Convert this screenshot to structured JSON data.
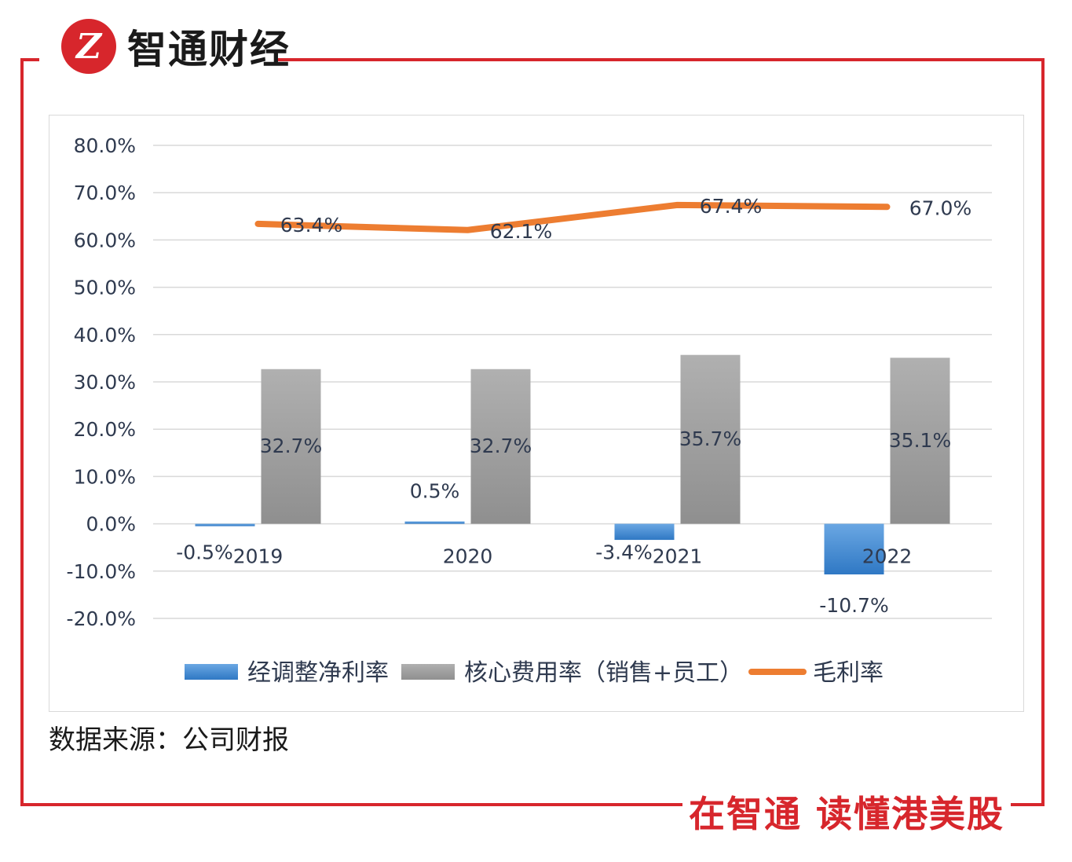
{
  "brand": {
    "name": "智通财经",
    "logo_letter": "Z",
    "slogan": "在智通  读懂港美股",
    "accent": "#d7262c"
  },
  "source_note": "数据来源：公司财报",
  "chart_data": {
    "type": "bar",
    "title": "",
    "categories": [
      "2019",
      "2020",
      "2021",
      "2022"
    ],
    "ylim": [
      -20,
      80
    ],
    "yticks": [
      -20,
      -10,
      0,
      10,
      20,
      30,
      40,
      50,
      60,
      70,
      80
    ],
    "ytick_labels": [
      "-20.0%",
      "-10.0%",
      "0.0%",
      "10.0%",
      "20.0%",
      "30.0%",
      "40.0%",
      "50.0%",
      "60.0%",
      "70.0%",
      "80.0%"
    ],
    "grid": true,
    "legend_position": "bottom",
    "series": [
      {
        "name": "经调整净利率",
        "kind": "bar",
        "values": [
          -0.5,
          0.5,
          -3.4,
          -10.7
        ],
        "labels": [
          "-0.5%",
          "0.5%",
          "-3.4%",
          "-10.7%"
        ],
        "color": "#4a8fd6"
      },
      {
        "name": "核心费用率（销售+员工）",
        "kind": "bar",
        "values": [
          32.7,
          32.7,
          35.7,
          35.1
        ],
        "labels": [
          "32.7%",
          "32.7%",
          "35.7%",
          "35.1%"
        ],
        "color": "#a6a6a6"
      },
      {
        "name": "毛利率",
        "kind": "line",
        "values": [
          63.4,
          62.1,
          67.4,
          67.0
        ],
        "labels": [
          "63.4%",
          "62.1%",
          "67.4%",
          "67.0%"
        ],
        "color": "#ed7d31"
      }
    ]
  }
}
